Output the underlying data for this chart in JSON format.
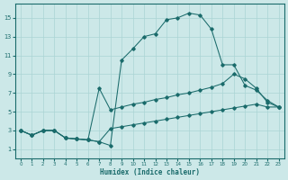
{
  "xlabel": "Humidex (Indice chaleur)",
  "background_color": "#cce8e8",
  "grid_color": "#aad4d4",
  "line_color": "#1a6b6b",
  "xlim": [
    -0.5,
    23.5
  ],
  "ylim": [
    0,
    16.5
  ],
  "yticks": [
    1,
    3,
    5,
    7,
    9,
    11,
    13,
    15
  ],
  "xticks": [
    0,
    1,
    2,
    3,
    4,
    5,
    6,
    7,
    8,
    9,
    10,
    11,
    12,
    13,
    14,
    15,
    16,
    17,
    18,
    19,
    20,
    21,
    22,
    23
  ],
  "series": [
    {
      "x": [
        0,
        1,
        2,
        3,
        4,
        5,
        6,
        7,
        8,
        9,
        10,
        11,
        12,
        13,
        14,
        15,
        16,
        17,
        18,
        19,
        20,
        21,
        22,
        23
      ],
      "y": [
        3.0,
        2.5,
        3.0,
        3.0,
        2.2,
        2.1,
        2.0,
        1.8,
        3.2,
        3.4,
        3.6,
        3.8,
        4.0,
        4.2,
        4.4,
        4.6,
        4.8,
        5.0,
        5.2,
        5.4,
        5.6,
        5.8,
        5.5,
        5.5
      ]
    },
    {
      "x": [
        0,
        1,
        2,
        3,
        4,
        5,
        6,
        7,
        8,
        9,
        10,
        11,
        12,
        13,
        14,
        15,
        16,
        17,
        18,
        19,
        20,
        21,
        22,
        23
      ],
      "y": [
        3.0,
        2.5,
        3.0,
        3.0,
        2.2,
        2.1,
        2.0,
        7.5,
        5.2,
        5.5,
        5.8,
        6.0,
        6.3,
        6.5,
        6.8,
        7.0,
        7.3,
        7.6,
        8.0,
        9.0,
        8.5,
        7.5,
        6.0,
        5.5
      ]
    },
    {
      "x": [
        0,
        1,
        2,
        3,
        4,
        5,
        6,
        7,
        8,
        9,
        10,
        11,
        12,
        13,
        14,
        15,
        16,
        17,
        18,
        19,
        20,
        21,
        22,
        23
      ],
      "y": [
        3.0,
        2.5,
        3.0,
        3.0,
        2.2,
        2.1,
        2.0,
        1.8,
        1.4,
        10.5,
        11.7,
        13.0,
        13.3,
        14.8,
        15.0,
        15.5,
        15.3,
        13.8,
        10.0,
        10.0,
        7.8,
        7.3,
        6.2,
        5.5
      ]
    }
  ]
}
